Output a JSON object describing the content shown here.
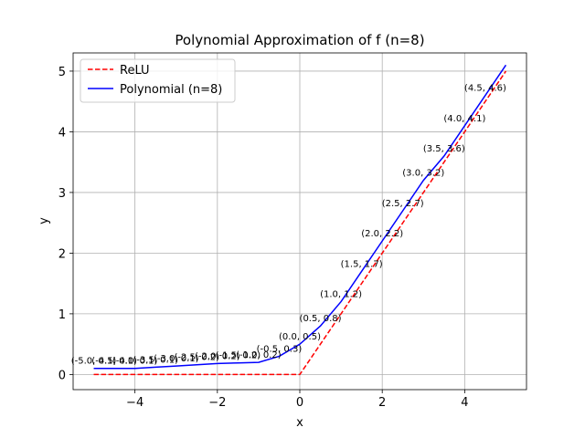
{
  "chart_data": {
    "type": "line",
    "title": "Polynomial Approximation of f (n=8)",
    "xlabel": "x",
    "ylabel": "y",
    "xlim": [
      -5.5,
      5.5
    ],
    "ylim": [
      -0.25,
      5.3
    ],
    "xticks": [
      -4,
      -2,
      0,
      2,
      4
    ],
    "xtick_labels": [
      "−4",
      "−2",
      "0",
      "2",
      "4"
    ],
    "yticks": [
      0,
      1,
      2,
      3,
      4,
      5
    ],
    "ytick_labels": [
      "0",
      "1",
      "2",
      "3",
      "4",
      "5"
    ],
    "grid": true,
    "legend_position": "top-left",
    "series": [
      {
        "name": "ReLU",
        "color": "#ff0000",
        "style": "dashed",
        "x": [
          -5,
          0,
          5
        ],
        "y": [
          0,
          0,
          5
        ]
      },
      {
        "name": "Polynomial (n=8)",
        "color": "#0000ff",
        "style": "solid",
        "x": [
          -5.0,
          -4.5,
          -4.0,
          -3.5,
          -3.0,
          -2.5,
          -2.0,
          -1.5,
          -1.0,
          -0.5,
          0.0,
          0.5,
          1.0,
          1.5,
          2.0,
          2.5,
          3.0,
          3.5,
          4.0,
          4.5,
          5.0
        ],
        "y": [
          0.1,
          0.1,
          0.1,
          0.12,
          0.14,
          0.16,
          0.18,
          0.19,
          0.2,
          0.3,
          0.5,
          0.8,
          1.2,
          1.7,
          2.2,
          2.7,
          3.2,
          3.6,
          4.1,
          4.6,
          5.1
        ]
      }
    ],
    "annotations": [
      {
        "text": "(-5.0, 0.1)",
        "x": -5.0,
        "y": 0.1
      },
      {
        "text": "(-4.5, 0.1)",
        "x": -4.5,
        "y": 0.1
      },
      {
        "text": "(-4.0, 0.1)",
        "x": -4.0,
        "y": 0.1
      },
      {
        "text": "(-3.5, 0.1)",
        "x": -3.5,
        "y": 0.12
      },
      {
        "text": "(-3.0, 0.1)",
        "x": -3.0,
        "y": 0.14
      },
      {
        "text": "(-2.5, 0.2)",
        "x": -2.5,
        "y": 0.16
      },
      {
        "text": "(-2.0, 0.2)",
        "x": -2.0,
        "y": 0.18
      },
      {
        "text": "(-1.5, 0.2)",
        "x": -1.5,
        "y": 0.19
      },
      {
        "text": "(-1.0, 0.2)",
        "x": -1.0,
        "y": 0.2
      },
      {
        "text": "(-0.5, 0.3)",
        "x": -0.5,
        "y": 0.3
      },
      {
        "text": "(0.0, 0.5)",
        "x": 0.0,
        "y": 0.5
      },
      {
        "text": "(0.5, 0.8)",
        "x": 0.5,
        "y": 0.8
      },
      {
        "text": "(1.0, 1.2)",
        "x": 1.0,
        "y": 1.2
      },
      {
        "text": "(1.5, 1.7)",
        "x": 1.5,
        "y": 1.7
      },
      {
        "text": "(2.0, 2.2)",
        "x": 2.0,
        "y": 2.2
      },
      {
        "text": "(2.5, 2.7)",
        "x": 2.5,
        "y": 2.7
      },
      {
        "text": "(3.0, 3.2)",
        "x": 3.0,
        "y": 3.2
      },
      {
        "text": "(3.5, 3.6)",
        "x": 3.5,
        "y": 3.6
      },
      {
        "text": "(4.0, 4.1)",
        "x": 4.0,
        "y": 4.1
      },
      {
        "text": "(4.5, 4.6)",
        "x": 4.5,
        "y": 4.6
      }
    ]
  }
}
